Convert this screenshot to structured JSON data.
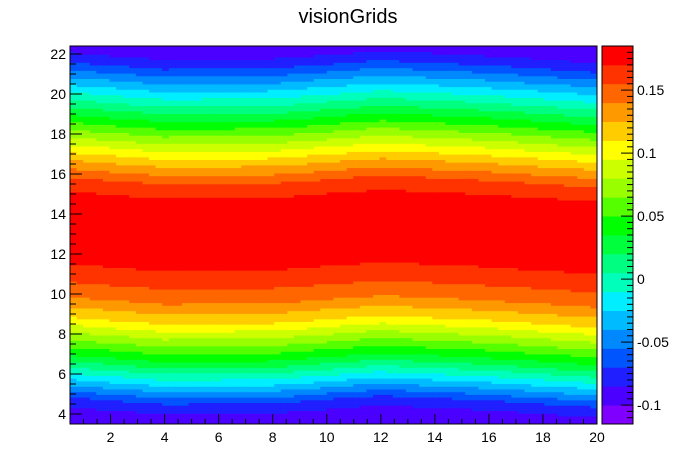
{
  "chart_data": {
    "type": "heatmap",
    "title": "visionGrids",
    "xlabel": "",
    "ylabel": "",
    "xlim": [
      0.5,
      20.0
    ],
    "ylim": [
      3.5,
      22.4
    ],
    "x_ticks": [
      2,
      4,
      6,
      8,
      10,
      12,
      14,
      16,
      18,
      20
    ],
    "y_ticks": [
      4,
      6,
      8,
      10,
      12,
      14,
      16,
      18,
      20,
      22
    ],
    "z_range": [
      -0.115,
      0.185
    ],
    "z_ticks": [
      -0.1,
      -0.05,
      0,
      0.05,
      0.1,
      0.15
    ],
    "grid": false,
    "legend": "right",
    "color_levels": [
      "#7f00ff",
      "#4b00ff",
      "#1f1fff",
      "#0055ff",
      "#0088ff",
      "#00bbff",
      "#00eeff",
      "#00ffbb",
      "#00ff80",
      "#00ff3c",
      "#00ff00",
      "#55ff00",
      "#99ff00",
      "#ccff00",
      "#ffff00",
      "#ffcc00",
      "#ff9900",
      "#ff6600",
      "#ff3300",
      "#ff0000"
    ],
    "profile": {
      "y": [
        3.5,
        4.5,
        5.5,
        6.5,
        7.5,
        8.5,
        9.5,
        10.5,
        11.5,
        12.5,
        13.5,
        14.5,
        15.5,
        16.5,
        17.5,
        18.5,
        19.5,
        20.5,
        21.5,
        22.4
      ],
      "value": [
        -0.1,
        -0.07,
        -0.02,
        0.03,
        0.07,
        0.11,
        0.14,
        0.16,
        0.175,
        0.182,
        0.182,
        0.176,
        0.155,
        0.12,
        0.08,
        0.04,
        0.0,
        -0.04,
        -0.08,
        -0.1
      ]
    },
    "center_shift": {
      "x": [
        0.5,
        4,
        8,
        12,
        16,
        20
      ],
      "dy": [
        0.35,
        0.0,
        0.05,
        0.45,
        0.2,
        -0.15
      ]
    }
  }
}
